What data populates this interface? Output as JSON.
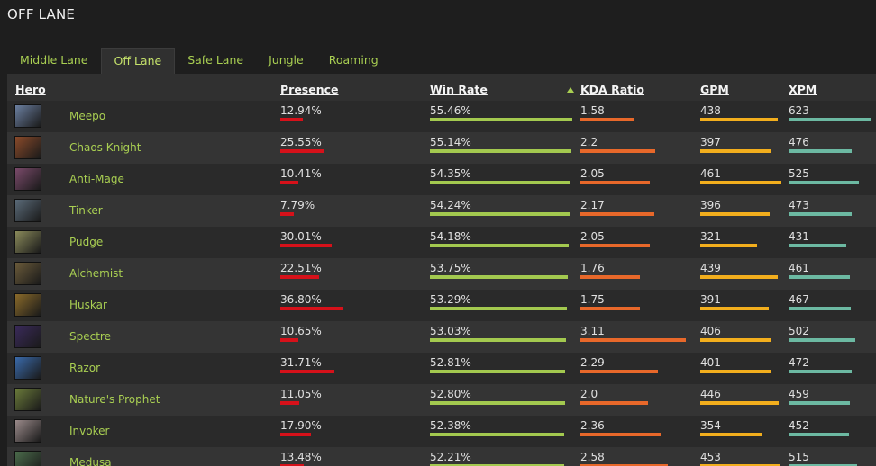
{
  "page": {
    "title": "OFF LANE"
  },
  "tabs": [
    {
      "label": "Middle Lane",
      "active": false
    },
    {
      "label": "Off Lane",
      "active": true
    },
    {
      "label": "Safe Lane",
      "active": false
    },
    {
      "label": "Jungle",
      "active": false
    },
    {
      "label": "Roaming",
      "active": false
    }
  ],
  "columns": {
    "hero": "Hero",
    "presence": "Presence",
    "winrate": "Win Rate",
    "kda": "KDA Ratio",
    "gpm": "GPM",
    "xpm": "XPM",
    "sort_icon": "sort-ascending-icon"
  },
  "colors": {
    "presence": "#d6111a",
    "winrate": "#a3c94f",
    "kda": "#e8682a",
    "gpm": "#f2ae1d",
    "xpm": "#6cb9a2",
    "link": "#a9cf52"
  },
  "rows": [
    {
      "hero": "Meepo",
      "presence": "12.94%",
      "winrate": "55.46%",
      "kda": "1.58",
      "gpm": "438",
      "xpm": "623",
      "avatar_color": "#6b7fa0"
    },
    {
      "hero": "Chaos Knight",
      "presence": "25.55%",
      "winrate": "55.14%",
      "kda": "2.2",
      "gpm": "397",
      "xpm": "476",
      "avatar_color": "#8a4a2a"
    },
    {
      "hero": "Anti-Mage",
      "presence": "10.41%",
      "winrate": "54.35%",
      "kda": "2.05",
      "gpm": "461",
      "xpm": "525",
      "avatar_color": "#7a4a6a"
    },
    {
      "hero": "Tinker",
      "presence": "7.79%",
      "winrate": "54.24%",
      "kda": "2.17",
      "gpm": "396",
      "xpm": "473",
      "avatar_color": "#5a6a78"
    },
    {
      "hero": "Pudge",
      "presence": "30.01%",
      "winrate": "54.18%",
      "kda": "2.05",
      "gpm": "321",
      "xpm": "431",
      "avatar_color": "#8a8a5a"
    },
    {
      "hero": "Alchemist",
      "presence": "22.51%",
      "winrate": "53.75%",
      "kda": "1.76",
      "gpm": "439",
      "xpm": "461",
      "avatar_color": "#6a5a3a"
    },
    {
      "hero": "Huskar",
      "presence": "36.80%",
      "winrate": "53.29%",
      "kda": "1.75",
      "gpm": "391",
      "xpm": "467",
      "avatar_color": "#8a6a2a"
    },
    {
      "hero": "Spectre",
      "presence": "10.65%",
      "winrate": "53.03%",
      "kda": "3.11",
      "gpm": "406",
      "xpm": "502",
      "avatar_color": "#3a2a5a"
    },
    {
      "hero": "Razor",
      "presence": "31.71%",
      "winrate": "52.81%",
      "kda": "2.29",
      "gpm": "401",
      "xpm": "472",
      "avatar_color": "#3a6aaa"
    },
    {
      "hero": "Nature's Prophet",
      "presence": "11.05%",
      "winrate": "52.80%",
      "kda": "2.0",
      "gpm": "446",
      "xpm": "459",
      "avatar_color": "#6a7a3a"
    },
    {
      "hero": "Invoker",
      "presence": "17.90%",
      "winrate": "52.38%",
      "kda": "2.36",
      "gpm": "354",
      "xpm": "452",
      "avatar_color": "#9a8a8a"
    },
    {
      "hero": "Medusa",
      "presence": "13.48%",
      "winrate": "52.21%",
      "kda": "2.58",
      "gpm": "453",
      "xpm": "515",
      "avatar_color": "#4a6a4a"
    }
  ]
}
